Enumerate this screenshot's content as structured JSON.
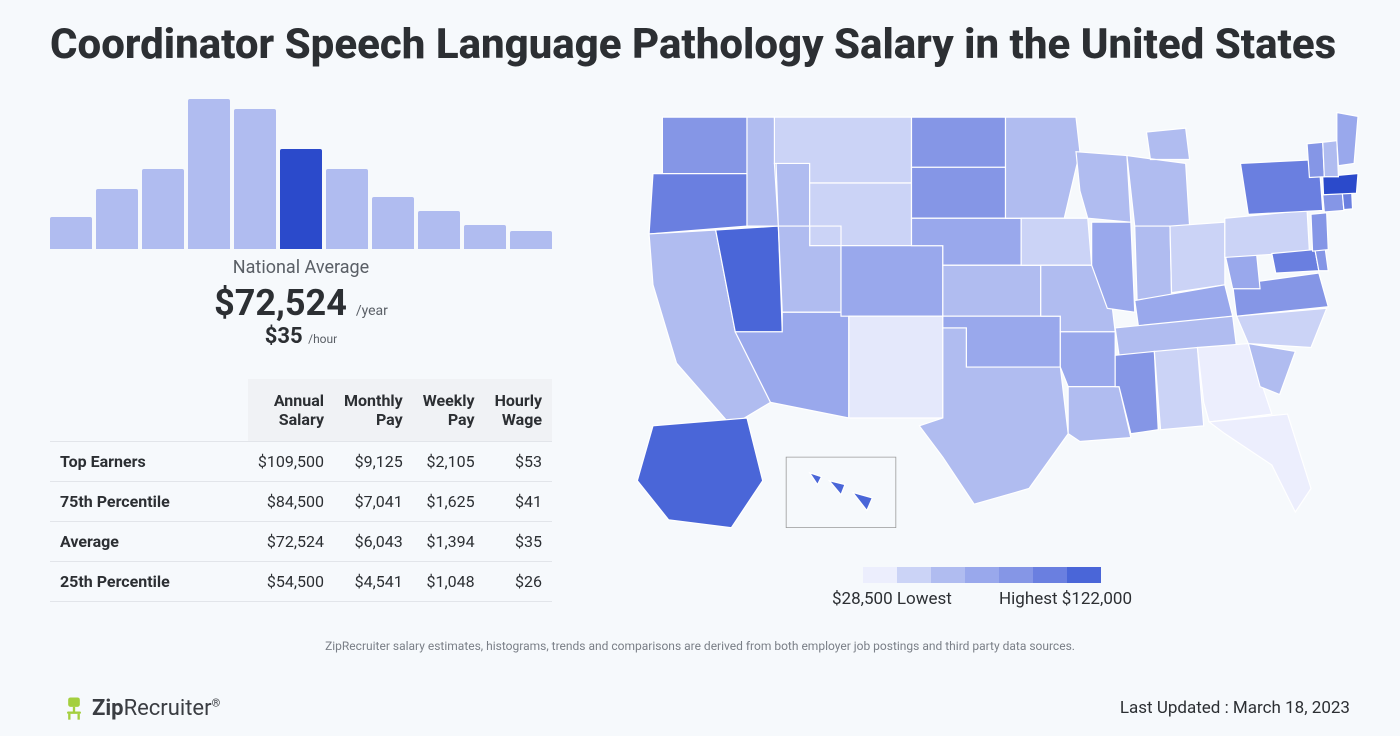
{
  "title": "Coordinator Speech Language Pathology Salary in the United States",
  "histogram": {
    "bars": [
      32,
      60,
      80,
      150,
      140,
      100,
      80,
      52,
      38,
      24,
      18
    ],
    "highlight_index": 5,
    "bar_color": "#b0bcf0",
    "highlight_color": "#2b4acb"
  },
  "national_avg_label": "National Average",
  "salary_year": "$72,524",
  "salary_year_unit": "/year",
  "salary_hour": "$35",
  "salary_hour_unit": "/hour",
  "table": {
    "columns": [
      "",
      "Annual Salary",
      "Monthly Pay",
      "Weekly Pay",
      "Hourly Wage"
    ],
    "rows": [
      [
        "Top Earners",
        "$109,500",
        "$9,125",
        "$2,105",
        "$53"
      ],
      [
        "75th Percentile",
        "$84,500",
        "$7,041",
        "$1,625",
        "$41"
      ],
      [
        "Average",
        "$72,524",
        "$6,043",
        "$1,394",
        "$35"
      ],
      [
        "25th Percentile",
        "$54,500",
        "$4,541",
        "$1,048",
        "$26"
      ]
    ]
  },
  "map": {
    "legend_colors": [
      "#eceefd",
      "#cbd3f6",
      "#b0bcf0",
      "#99a8ec",
      "#8596e6",
      "#6a7fe0",
      "#4a66d8"
    ],
    "lowest_label": "$28,500 Lowest",
    "highest_label": "Highest $122,000",
    "states": {
      "WA": "#8596e6",
      "OR": "#6a7fe0",
      "CA": "#b0bcf0",
      "NV": "#4a66d8",
      "ID": "#b0bcf0",
      "MT": "#cbd3f6",
      "WY": "#cbd3f6",
      "UT": "#b0bcf0",
      "AZ": "#99a8ec",
      "CO": "#99a8ec",
      "NM": "#e4e8fb",
      "ND": "#8596e6",
      "SD": "#8596e6",
      "NE": "#99a8ec",
      "KS": "#b0bcf0",
      "OK": "#99a8ec",
      "TX": "#b0bcf0",
      "MN": "#b0bcf0",
      "IA": "#cbd3f6",
      "MO": "#b0bcf0",
      "AR": "#99a8ec",
      "LA": "#b0bcf0",
      "WI": "#b0bcf0",
      "IL": "#99a8ec",
      "MI": "#b0bcf0",
      "IN": "#b0bcf0",
      "OH": "#cbd3f6",
      "KY": "#99a8ec",
      "TN": "#b0bcf0",
      "MS": "#8596e6",
      "AL": "#cbd3f6",
      "GA": "#eceefd",
      "FL": "#eceefd",
      "SC": "#b0bcf0",
      "NC": "#cbd3f6",
      "VA": "#8596e6",
      "WV": "#99a8ec",
      "PA": "#cbd3f6",
      "NY": "#6a7fe0",
      "MD": "#6a7fe0",
      "DE": "#8596e6",
      "NJ": "#8596e6",
      "CT": "#8596e6",
      "RI": "#6a7fe0",
      "MA": "#2b4acb",
      "VT": "#8596e6",
      "NH": "#b0bcf0",
      "ME": "#99a8ec",
      "AK": "#4a66d8",
      "HI": "#4a66d8"
    }
  },
  "disclaimer": "ZipRecruiter salary estimates, histograms, trends and comparisons are derived from both employer job postings and third party data sources.",
  "brand": {
    "name1": "Zip",
    "name2": "Recruiter",
    "icon_color": "#a4cf3e"
  },
  "updated": "Last Updated : March 18, 2023"
}
